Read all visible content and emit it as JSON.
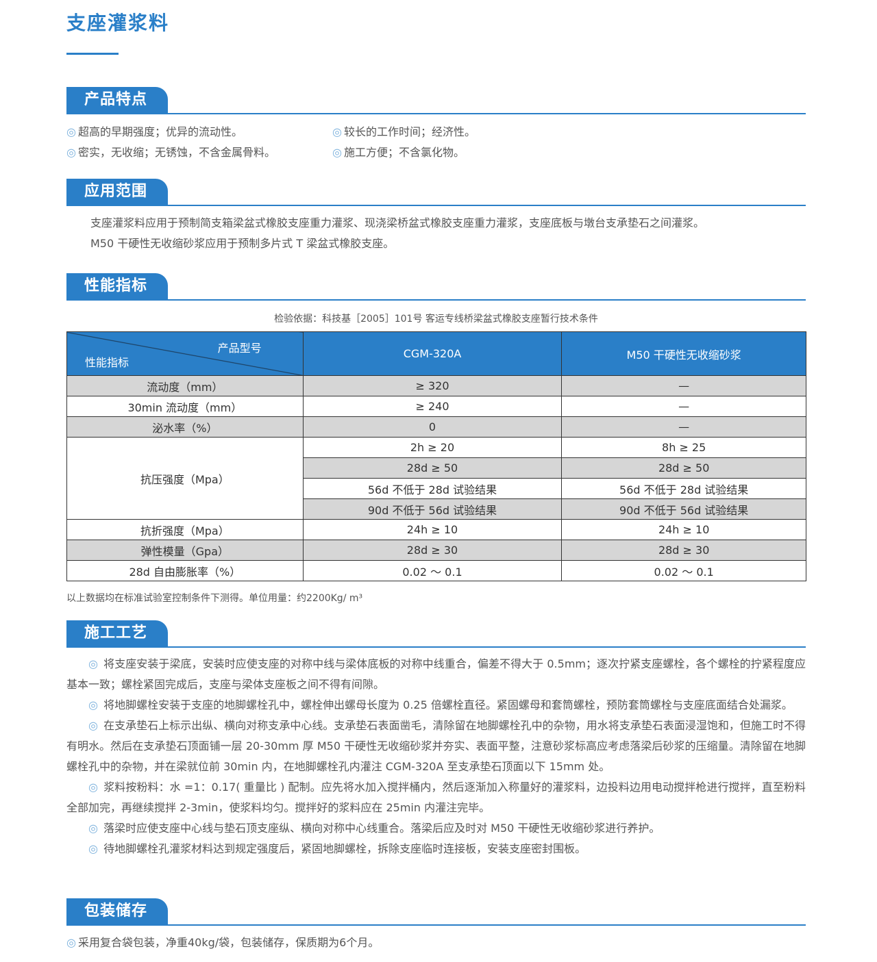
{
  "title": "支座灌浆料",
  "sections": {
    "features": {
      "label": "产品特点",
      "items": [
        "超高的早期强度；优异的流动性。",
        "较长的工作时间；经济性。",
        "密实，无收缩；无锈蚀，不含金属骨料。",
        "施工方便；不含氯化物。"
      ]
    },
    "scope": {
      "label": "应用范围",
      "lines": [
        "支座灌浆料应用于预制简支箱梁盆式橡胶支座重力灌浆、现浇梁桥盆式橡胶支座重力灌浆，支座底板与墩台支承垫石之间灌浆。",
        "M50 干硬性无收缩砂浆应用于预制多片式 T 梁盆式橡胶支座。"
      ]
    },
    "performance": {
      "label": "性能指标",
      "basis": "检验依据：科技基［2005］101号 客运专线桥梁盆式橡胶支座暂行技术条件",
      "table": {
        "corner_top": "产品型号",
        "corner_bottom": "性能指标",
        "columns": [
          "CGM-320A",
          "M50 干硬性无收缩砂浆"
        ],
        "rows": [
          [
            "流动度（mm）",
            "≥ 320",
            "—"
          ],
          [
            "30min 流动度（mm）",
            "≥ 240",
            "—"
          ],
          [
            "泌水率（%）",
            "0",
            "—"
          ],
          [
            "抗压强度（Mpa）",
            "2h ≥ 20",
            "8h ≥ 25"
          ],
          [
            "",
            "28d ≥ 50",
            "28d ≥ 50"
          ],
          [
            "",
            "56d 不低于 28d 试验结果",
            "56d 不低于 28d 试验结果"
          ],
          [
            "",
            "90d 不低于 56d 试验结果",
            "90d 不低于 56d 试验结果"
          ],
          [
            "抗折强度（Mpa）",
            "24h ≥ 10",
            "24h ≥ 10"
          ],
          [
            "弹性模量（Gpa）",
            "28d ≥ 30",
            "28d ≥ 30"
          ],
          [
            "28d 自由膨胀率（%）",
            "0.02 ～ 0.1",
            "0.02 ～ 0.1"
          ]
        ]
      },
      "note": "以上数据均在标准试验室控制条件下测得。单位用量：约2200Kg/ m³"
    },
    "process": {
      "label": "施工工艺",
      "paragraphs": [
        "将支座安装于梁底，安装时应使支座的对称中线与梁体底板的对称中线重合，偏差不得大于 0.5mm；逐次拧紧支座螺栓，各个螺栓的拧紧程度应基本一致；螺栓紧固完成后，支座与梁体支座板之间不得有间隙。",
        "将地脚螺栓安装于支座的地脚螺栓孔中，螺栓伸出螺母长度为 0.25 倍螺栓直径。紧固螺母和套筒螺栓，预防套筒螺栓与支座底面结合处漏浆。",
        "在支承垫石上标示出纵、横向对称支承中心线。支承垫石表面凿毛，清除留在地脚螺栓孔中的杂物，用水将支承垫石表面浸湿饱和，但施工时不得有明水。然后在支承垫石顶面铺一层 20-30mm 厚 M50 干硬性无收缩砂浆并夯实、表面平整，注意砂浆标高应考虑落梁后砂浆的压缩量。清除留在地脚螺栓孔中的杂物，并在梁就位前 30min 内，在地脚螺栓孔内灌注 CGM-320A 至支承垫石顶面以下 15mm 处。",
        "浆料按粉料：水 =1：0.17( 重量比 ) 配制。应先将水加入搅拌桶内，然后逐渐加入称量好的灌浆料，边投料边用电动搅拌枪进行搅拌，直至粉料全部加完，再继续搅拌 2-3min，使浆料均匀。搅拌好的浆料应在 25min 内灌注完毕。",
        "落梁时应使支座中心线与垫石顶支座纵、横向对称中心线重合。落梁后应及时对 M50 干硬性无收缩砂浆进行养护。",
        "待地脚螺栓孔灌浆材料达到规定强度后，紧固地脚螺栓，拆除支座临时连接板，安装支座密封围板。"
      ]
    },
    "packaging": {
      "label": "包装储存",
      "items": [
        "采用复合袋包装，净重40kg/袋，包装储存，保质期为6个月。"
      ]
    }
  },
  "bullet": "◎",
  "colors": {
    "accent": "#2a7fc8",
    "row_gray": "#d6d6d6"
  }
}
